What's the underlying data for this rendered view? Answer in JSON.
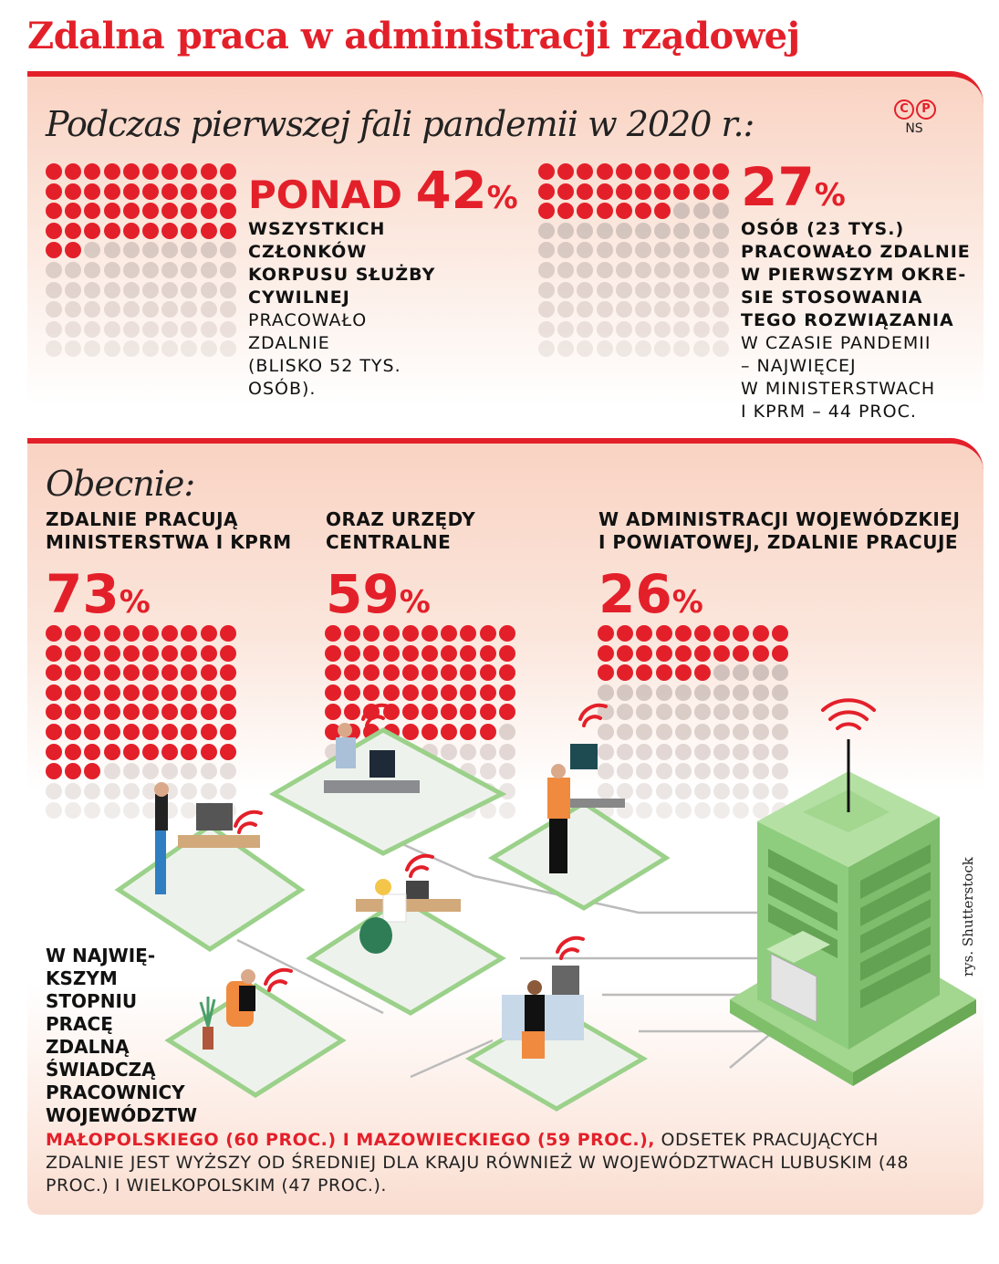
{
  "title": "Zdalna praca w administracji rządowej",
  "copyright": {
    "symbols": [
      "C",
      "P"
    ],
    "initials": "NS"
  },
  "section1": {
    "heading": "Podczas pierwszej fali pandemii w 2020 r.:",
    "left": {
      "prefix": "PONAD",
      "value": "42",
      "pct": "%",
      "bold_lines": [
        "WSZYSTKICH",
        "CZŁONKÓW",
        "KORPUSU SŁUŻBY",
        "CYWILNEJ"
      ],
      "regular_lines": [
        "PRACOWAŁO",
        "ZDALNIE",
        "(BLISKO 52 TYS.",
        "OSÓB)."
      ]
    },
    "right": {
      "value": "27",
      "pct": "%",
      "bold_lines": [
        "OSÓB (23 TYS.)",
        "PRACOWAŁO ZDALNIE",
        "W PIERWSZYM OKRE-",
        "SIE STOSOWANIA",
        "TEGO ROZWIĄZANIA"
      ],
      "regular_lines": [
        "W CZASIE PANDEMII",
        "– NAJWIĘCEJ",
        "W MINISTERSTWACH",
        "I KPRM – 44 PROC."
      ]
    }
  },
  "section2": {
    "heading": "Obecnie:",
    "col1": {
      "label_lines": [
        "Zdalnie pracują",
        "ministerstwa i KPRM"
      ],
      "value": "73",
      "pct": "%"
    },
    "col2": {
      "label_lines": [
        "oraz urzędy",
        "centralne"
      ],
      "value": "59",
      "pct": "%"
    },
    "col3": {
      "label_lines": [
        "W administracji wojewódzkiej",
        "i powiatowej, zdalnie pracuje"
      ],
      "value": "26",
      "pct": "%"
    },
    "side_lines": [
      "W najwię-",
      "kszym",
      "stopniu",
      "pracę",
      "zdalną",
      "świadczą",
      "pracownicy",
      "województw"
    ],
    "bottom_red": "Małopolskiego (60 proc.) i mazowieckiego (59 proc.),",
    "bottom_rest": " odsetek pracujących zdalnie jest wyższy od średniej dla kraju również w województwach lubuskim (48 proc.) i wielkopolskim (47 proc.)."
  },
  "credit": "rys. Shutterstock",
  "colors": {
    "accent": "#e3202a",
    "inactive_dot": "#c8b9b4",
    "building_green": "#8fcd7e",
    "panel_bg": "#f9d3c3"
  },
  "chart_data": {
    "type": "bar",
    "title": "Zdalna praca w administracji rządowej",
    "categories": [
      "Korpus służby cywilnej (1. fala 2020)",
      "Osoby w pierwszym okresie (1. fala 2020)",
      "Ministerstwa i KPRM (obecnie)",
      "Urzędy centralne (obecnie)",
      "Administracja wojewódzka i powiatowa (obecnie)"
    ],
    "values": [
      42,
      27,
      73,
      59,
      26
    ],
    "unit": "%",
    "representation": "10x10 dot grid per value (filled dots = percent)",
    "annotations": [
      "Ponad 42% (blisko 52 tys. osób)",
      "27% (23 tys. osób); najwięcej w ministerstwach i KPRM – 44 proc.",
      "Małopolskie 60 proc., mazowieckie 59 proc., lubuskie 48 proc., wielkopolskie 47 proc."
    ],
    "regional": {
      "categories": [
        "małopolskie",
        "mazowieckie",
        "lubuskie",
        "wielkopolskie"
      ],
      "values": [
        60,
        59,
        48,
        47
      ]
    },
    "ylim": [
      0,
      100
    ]
  }
}
